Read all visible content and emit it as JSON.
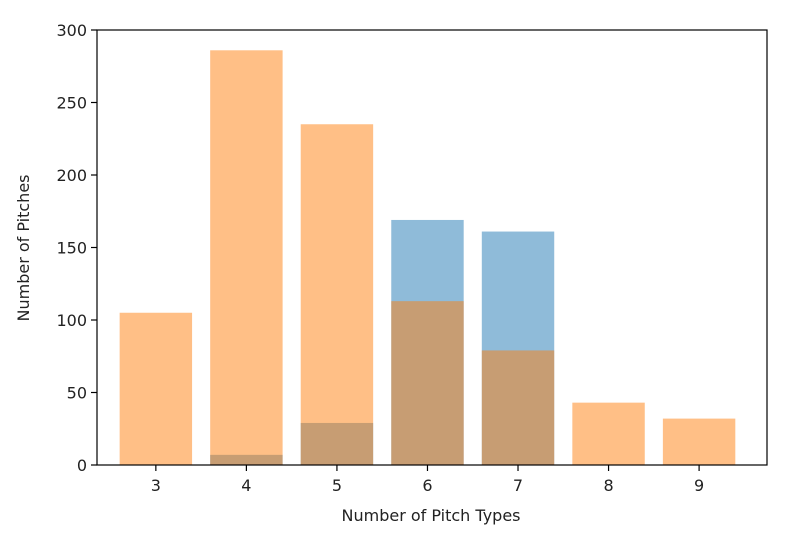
{
  "chart_data": {
    "type": "bar",
    "title": "",
    "xlabel": "Number of Pitch Types",
    "ylabel": "Number of Pitches",
    "categories": [
      "3",
      "4",
      "5",
      "6",
      "7",
      "8",
      "9"
    ],
    "x": [
      3,
      4,
      5,
      6,
      7,
      8,
      9
    ],
    "xlim": [
      2.35,
      9.75
    ],
    "ylim": [
      0,
      300
    ],
    "yticks": [
      0,
      50,
      100,
      150,
      200,
      250,
      300
    ],
    "grid": false,
    "legend": "none",
    "bar_width": 0.8,
    "overlay": true,
    "series": [
      {
        "color": "#1f77b4",
        "opacity": 0.5,
        "values": [
          0,
          7,
          29,
          169,
          161,
          0,
          0
        ]
      },
      {
        "color": "#ff7f0e",
        "opacity": 0.5,
        "values": [
          105,
          286,
          235,
          113,
          79,
          43,
          32
        ]
      }
    ]
  }
}
